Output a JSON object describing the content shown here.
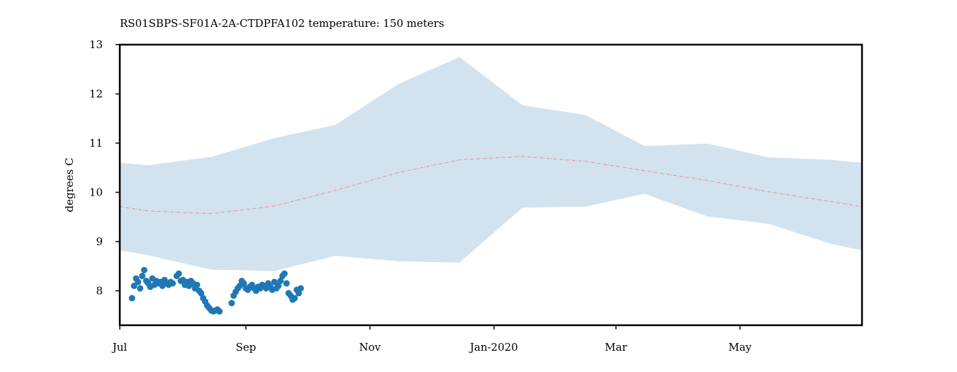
{
  "chart_data": {
    "type": "scatter",
    "title": "RS01SBPS-SF01A-2A-CTDPFA102 temperature: 150 meters",
    "ylabel": "degrees C",
    "xlabel": "",
    "xlim": [
      "2019-07-01",
      "2020-06-30"
    ],
    "ylim": [
      7.3,
      13.0
    ],
    "yticks": [
      8,
      9,
      10,
      11,
      12,
      13
    ],
    "xticks": [
      {
        "date": "2019-07-01",
        "label": "Jul"
      },
      {
        "date": "2019-09-01",
        "label": "Sep"
      },
      {
        "date": "2019-11-01",
        "label": "Nov"
      },
      {
        "date": "2020-01-01",
        "label": "Jan-2020"
      },
      {
        "date": "2020-03-01",
        "label": "Mar"
      },
      {
        "date": "2020-05-01",
        "label": "May"
      }
    ],
    "grid": false,
    "colors": {
      "band": "#d2e3ef",
      "mean_line": "#e0878d",
      "points": "#1f77b4"
    },
    "range_band": {
      "x": [
        "2019-07-01",
        "2019-07-15",
        "2019-08-15",
        "2019-09-15",
        "2019-10-15",
        "2019-11-15",
        "2019-12-15",
        "2020-01-15",
        "2020-02-15",
        "2020-03-15",
        "2020-04-15",
        "2020-05-15",
        "2020-06-15",
        "2020-06-30"
      ],
      "upper": [
        10.6,
        10.55,
        10.72,
        11.1,
        11.37,
        12.2,
        12.75,
        11.77,
        11.57,
        10.94,
        10.99,
        10.71,
        10.66,
        10.6
      ],
      "lower": [
        8.82,
        8.72,
        8.43,
        8.4,
        8.71,
        8.6,
        8.57,
        9.69,
        9.71,
        9.97,
        9.51,
        9.36,
        8.95,
        8.82
      ]
    },
    "mean_line": {
      "x": [
        "2019-07-01",
        "2019-07-15",
        "2019-08-15",
        "2019-09-15",
        "2019-10-15",
        "2019-11-15",
        "2019-12-15",
        "2020-01-15",
        "2020-02-15",
        "2020-03-15",
        "2020-04-15",
        "2020-05-15",
        "2020-06-15",
        "2020-06-30"
      ],
      "y": [
        9.71,
        9.62,
        9.57,
        9.72,
        10.04,
        10.4,
        10.66,
        10.73,
        10.63,
        10.44,
        10.24,
        10.01,
        9.81,
        9.71
      ]
    },
    "observations": {
      "x": [
        "2019-07-07",
        "2019-07-08",
        "2019-07-09",
        "2019-07-10",
        "2019-07-11",
        "2019-07-12",
        "2019-07-13",
        "2019-07-14",
        "2019-07-15",
        "2019-07-16",
        "2019-07-17",
        "2019-07-18",
        "2019-07-19",
        "2019-07-20",
        "2019-07-21",
        "2019-07-22",
        "2019-07-23",
        "2019-07-24",
        "2019-07-25",
        "2019-07-26",
        "2019-07-27",
        "2019-07-29",
        "2019-07-30",
        "2019-07-31",
        "2019-08-01",
        "2019-08-02",
        "2019-08-03",
        "2019-08-04",
        "2019-08-05",
        "2019-08-06",
        "2019-08-07",
        "2019-08-08",
        "2019-08-09",
        "2019-08-10",
        "2019-08-11",
        "2019-08-12",
        "2019-08-13",
        "2019-08-14",
        "2019-08-15",
        "2019-08-16",
        "2019-08-17",
        "2019-08-18",
        "2019-08-19",
        "2019-08-25",
        "2019-08-26",
        "2019-08-27",
        "2019-08-28",
        "2019-08-29",
        "2019-08-30",
        "2019-08-31",
        "2019-09-01",
        "2019-09-02",
        "2019-09-03",
        "2019-09-04",
        "2019-09-05",
        "2019-09-06",
        "2019-09-07",
        "2019-09-08",
        "2019-09-09",
        "2019-09-10",
        "2019-09-11",
        "2019-09-12",
        "2019-09-13",
        "2019-09-14",
        "2019-09-15",
        "2019-09-16",
        "2019-09-17",
        "2019-09-18",
        "2019-09-19",
        "2019-09-20",
        "2019-09-21",
        "2019-09-22",
        "2019-09-23",
        "2019-09-24",
        "2019-09-25",
        "2019-09-26",
        "2019-09-27",
        "2019-09-28"
      ],
      "y": [
        7.85,
        8.1,
        8.25,
        8.18,
        8.05,
        8.3,
        8.42,
        8.2,
        8.15,
        8.08,
        8.25,
        8.12,
        8.2,
        8.15,
        8.18,
        8.1,
        8.22,
        8.15,
        8.12,
        8.18,
        8.15,
        8.3,
        8.35,
        8.2,
        8.22,
        8.12,
        8.18,
        8.1,
        8.2,
        8.15,
        8.05,
        8.12,
        8.0,
        7.95,
        7.85,
        7.78,
        7.7,
        7.65,
        7.6,
        7.58,
        7.6,
        7.62,
        7.58,
        7.75,
        7.9,
        7.98,
        8.05,
        8.1,
        8.2,
        8.15,
        8.05,
        8.02,
        8.08,
        8.12,
        8.05,
        8.0,
        8.08,
        8.05,
        8.12,
        8.1,
        8.05,
        8.15,
        8.08,
        8.02,
        8.18,
        8.05,
        8.1,
        8.2,
        8.3,
        8.35,
        8.15,
        7.95,
        7.9,
        7.82,
        7.85,
        8.02,
        7.95,
        8.05
      ]
    }
  }
}
